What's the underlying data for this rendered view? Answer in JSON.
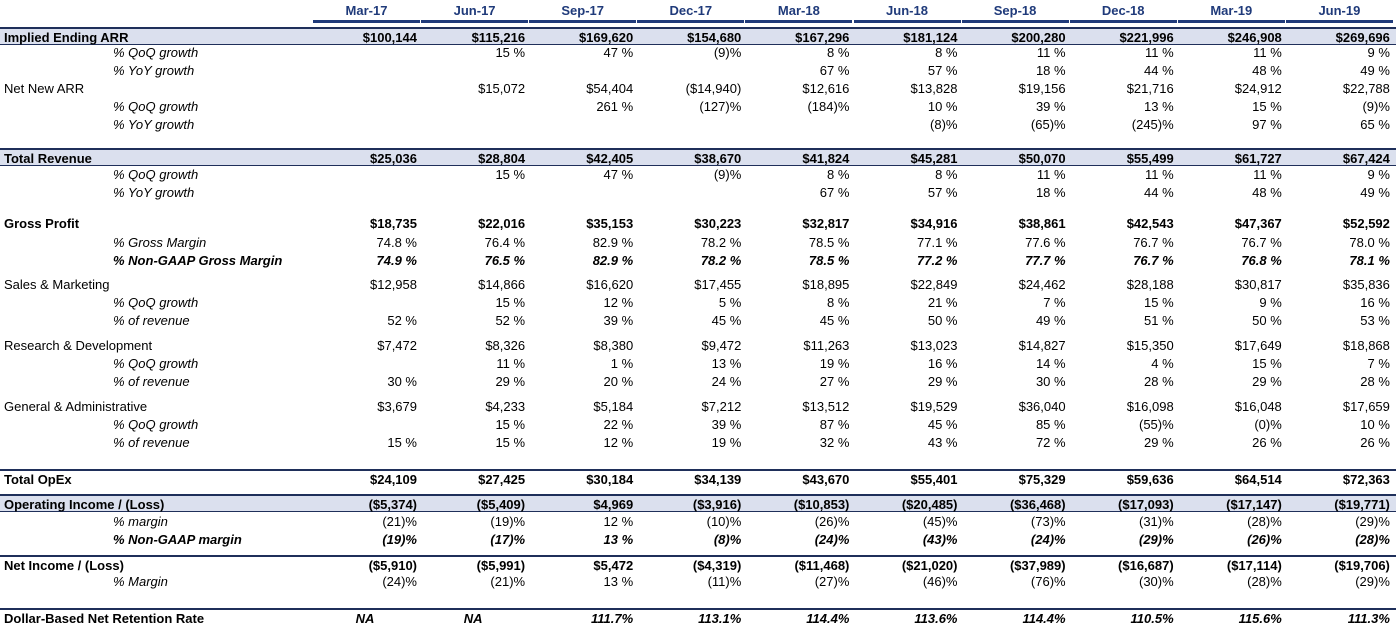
{
  "table": {
    "columns": [
      "Mar-17",
      "Jun-17",
      "Sep-17",
      "Dec-17",
      "Mar-18",
      "Jun-18",
      "Sep-18",
      "Dec-18",
      "Mar-19",
      "Jun-19"
    ],
    "rows": [
      {
        "label": "Implied Ending ARR",
        "values": [
          "$100,144",
          "$115,216",
          "$169,620",
          "$154,680",
          "$167,296",
          "$181,124",
          "$200,280",
          "$221,996",
          "$246,908",
          "$269,696"
        ]
      },
      {
        "label": "% QoQ growth",
        "values": [
          null,
          "15 %",
          "47 %",
          "(9)%",
          "8 %",
          "8 %",
          "11 %",
          "11 %",
          "11 %",
          "9 %"
        ]
      },
      {
        "label": "% YoY growth",
        "values": [
          null,
          null,
          null,
          null,
          "67 %",
          "57 %",
          "18 %",
          "44 %",
          "48 %",
          "49 %"
        ]
      },
      {
        "label": "Net New ARR",
        "values": [
          null,
          "$15,072",
          "$54,404",
          "($14,940)",
          "$12,616",
          "$13,828",
          "$19,156",
          "$21,716",
          "$24,912",
          "$22,788"
        ]
      },
      {
        "label": "% QoQ growth",
        "values": [
          null,
          null,
          "261 %",
          "(127)%",
          "(184)%",
          "10 %",
          "39 %",
          "13 %",
          "15 %",
          "(9)%"
        ]
      },
      {
        "label": "% YoY growth",
        "values": [
          null,
          null,
          null,
          null,
          null,
          "(8)%",
          "(65)%",
          "(245)%",
          "97 %",
          "65 %"
        ]
      },
      {
        "label": "Total Revenue",
        "values": [
          "$25,036",
          "$28,804",
          "$42,405",
          "$38,670",
          "$41,824",
          "$45,281",
          "$50,070",
          "$55,499",
          "$61,727",
          "$67,424"
        ]
      },
      {
        "label": "% QoQ growth",
        "values": [
          null,
          "15 %",
          "47 %",
          "(9)%",
          "8 %",
          "8 %",
          "11 %",
          "11 %",
          "11 %",
          "9 %"
        ]
      },
      {
        "label": "% YoY growth",
        "values": [
          null,
          null,
          null,
          null,
          "67 %",
          "57 %",
          "18 %",
          "44 %",
          "48 %",
          "49 %"
        ]
      },
      {
        "label": "Gross Profit",
        "values": [
          "$18,735",
          "$22,016",
          "$35,153",
          "$30,223",
          "$32,817",
          "$34,916",
          "$38,861",
          "$42,543",
          "$47,367",
          "$52,592"
        ]
      },
      {
        "label": "% Gross Margin",
        "values": [
          "74.8 %",
          "76.4 %",
          "82.9 %",
          "78.2 %",
          "78.5 %",
          "77.1 %",
          "77.6 %",
          "76.7 %",
          "76.7 %",
          "78.0 %"
        ]
      },
      {
        "label": "% Non-GAAP Gross Margin",
        "values": [
          "74.9 %",
          "76.5 %",
          "82.9 %",
          "78.2 %",
          "78.5 %",
          "77.2 %",
          "77.7 %",
          "76.7 %",
          "76.8 %",
          "78.1 %"
        ]
      },
      {
        "label": "Sales & Marketing",
        "values": [
          "$12,958",
          "$14,866",
          "$16,620",
          "$17,455",
          "$18,895",
          "$22,849",
          "$24,462",
          "$28,188",
          "$30,817",
          "$35,836"
        ]
      },
      {
        "label": "% QoQ growth",
        "values": [
          null,
          "15 %",
          "12 %",
          "5 %",
          "8 %",
          "21 %",
          "7 %",
          "15 %",
          "9 %",
          "16 %"
        ]
      },
      {
        "label": "% of revenue",
        "values": [
          "52 %",
          "52 %",
          "39 %",
          "45 %",
          "45 %",
          "50 %",
          "49 %",
          "51 %",
          "50 %",
          "53 %"
        ]
      },
      {
        "label": "Research & Development",
        "values": [
          "$7,472",
          "$8,326",
          "$8,380",
          "$9,472",
          "$11,263",
          "$13,023",
          "$14,827",
          "$15,350",
          "$17,649",
          "$18,868"
        ]
      },
      {
        "label": "% QoQ growth",
        "values": [
          null,
          "11 %",
          "1 %",
          "13 %",
          "19 %",
          "16 %",
          "14 %",
          "4 %",
          "15 %",
          "7 %"
        ]
      },
      {
        "label": "% of revenue",
        "values": [
          "30 %",
          "29 %",
          "20 %",
          "24 %",
          "27 %",
          "29 %",
          "30 %",
          "28 %",
          "29 %",
          "28 %"
        ]
      },
      {
        "label": "General & Administrative",
        "values": [
          "$3,679",
          "$4,233",
          "$5,184",
          "$7,212",
          "$13,512",
          "$19,529",
          "$36,040",
          "$16,098",
          "$16,048",
          "$17,659"
        ]
      },
      {
        "label": "% QoQ growth",
        "values": [
          null,
          "15 %",
          "22 %",
          "39 %",
          "87 %",
          "45 %",
          "85 %",
          "(55)%",
          "(0)%",
          "10 %"
        ]
      },
      {
        "label": "% of revenue",
        "values": [
          "15 %",
          "15 %",
          "12 %",
          "19 %",
          "32 %",
          "43 %",
          "72 %",
          "29 %",
          "26 %",
          "26 %"
        ]
      },
      {
        "label": "Total OpEx",
        "values": [
          "$24,109",
          "$27,425",
          "$30,184",
          "$34,139",
          "$43,670",
          "$55,401",
          "$75,329",
          "$59,636",
          "$64,514",
          "$72,363"
        ]
      },
      {
        "label": "Operating Income / (Loss)",
        "values": [
          "($5,374)",
          "($5,409)",
          "$4,969",
          "($3,916)",
          "($10,853)",
          "($20,485)",
          "($36,468)",
          "($17,093)",
          "($17,147)",
          "($19,771)"
        ]
      },
      {
        "label": "% margin",
        "values": [
          "(21)%",
          "(19)%",
          "12 %",
          "(10)%",
          "(26)%",
          "(45)%",
          "(73)%",
          "(31)%",
          "(28)%",
          "(29)%"
        ]
      },
      {
        "label": "% Non-GAAP margin",
        "values": [
          "(19)%",
          "(17)%",
          "13 %",
          "(8)%",
          "(24)%",
          "(43)%",
          "(24)%",
          "(29)%",
          "(26)%",
          "(28)%"
        ]
      },
      {
        "label": "Net Income / (Loss)",
        "values": [
          "($5,910)",
          "($5,991)",
          "$5,472",
          "($4,319)",
          "($11,468)",
          "($21,020)",
          "($37,989)",
          "($16,687)",
          "($17,114)",
          "($19,706)"
        ]
      },
      {
        "label": "% Margin",
        "values": [
          "(24)%",
          "(21)%",
          "13 %",
          "(11)%",
          "(27)%",
          "(46)%",
          "(76)%",
          "(30)%",
          "(28)%",
          "(29)%"
        ]
      },
      {
        "label": "Dollar-Based Net Retention Rate",
        "values": [
          "NA",
          "NA",
          "111.7%",
          "113.1%",
          "114.4%",
          "113.6%",
          "114.4%",
          "110.5%",
          "115.6%",
          "111.3%"
        ]
      }
    ]
  }
}
